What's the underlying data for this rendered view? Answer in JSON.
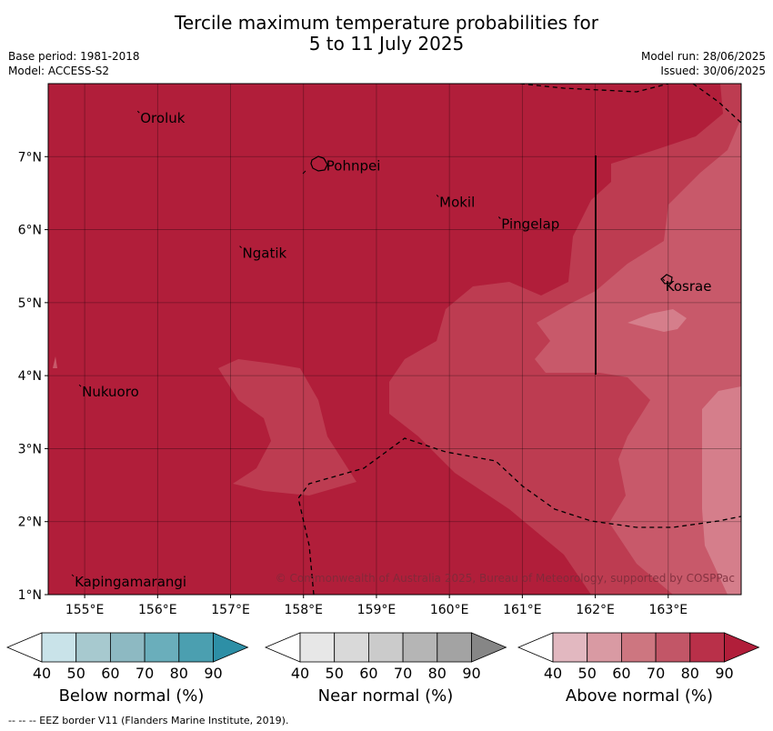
{
  "header": {
    "title_line1": "Tercile maximum temperature probabilities for",
    "title_line2": "5 to 11 July 2025",
    "base_period": "Base period: 1981-2018",
    "model": "Model: ACCESS-S2",
    "model_run": "Model run: 28/06/2025",
    "issued": "Issued: 30/06/2025"
  },
  "map": {
    "lon_range": [
      154.5,
      164.0
    ],
    "lat_range": [
      1.0,
      8.0
    ],
    "lon_ticks": [
      "155°E",
      "156°E",
      "157°E",
      "158°E",
      "159°E",
      "160°E",
      "161°E",
      "162°E",
      "163°E"
    ],
    "lat_ticks": [
      "1°N",
      "2°N",
      "3°N",
      "4°N",
      "5°N",
      "6°N",
      "7°N"
    ],
    "places": [
      {
        "name": "Oroluk",
        "lon": 155.75,
        "lat": 7.6
      },
      {
        "name": "Pohnpei",
        "lon": 158.3,
        "lat": 6.95
      },
      {
        "name": "Mokil",
        "lon": 159.85,
        "lat": 6.45
      },
      {
        "name": "Pingelap",
        "lon": 160.7,
        "lat": 6.15
      },
      {
        "name": "Ngatik",
        "lon": 157.15,
        "lat": 5.75
      },
      {
        "name": "Kosrae",
        "lon": 162.95,
        "lat": 5.3
      },
      {
        "name": "Nukuoro",
        "lon": 154.95,
        "lat": 3.85
      },
      {
        "name": "Kapingamarangi",
        "lon": 154.85,
        "lat": 1.25
      }
    ],
    "copyright": "© Commonwealth of Australia 2025, Bureau of Meteorology, supported by COSPPac",
    "colors": {
      "above_80": "#b11e3a",
      "above_70": "#bd3c51",
      "above_60": "#c8596a",
      "above_50": "#d57e8b"
    }
  },
  "legends": [
    {
      "label": "Below normal (%)",
      "ticks": [
        "40",
        "50",
        "60",
        "70",
        "80",
        "90"
      ],
      "colors": [
        "#ffffff",
        "#c9e3e9",
        "#a7c9cf",
        "#8db9c2",
        "#6aaebb",
        "#4b9fb0",
        "#2d8fa6"
      ]
    },
    {
      "label": "Near normal (%)",
      "ticks": [
        "40",
        "50",
        "60",
        "70",
        "80",
        "90"
      ],
      "colors": [
        "#ffffff",
        "#e7e7e7",
        "#d9d9d9",
        "#cbcbcb",
        "#b5b5b5",
        "#a3a3a3",
        "#868686"
      ]
    },
    {
      "label": "Above normal (%)",
      "ticks": [
        "40",
        "50",
        "60",
        "70",
        "80",
        "90"
      ],
      "colors": [
        "#ffffff",
        "#e2b8c0",
        "#d99aa3",
        "#cd7680",
        "#c25667",
        "#b93049",
        "#b11e3a"
      ]
    }
  ],
  "footer": "--  --  -- EEZ border V11 (Flanders Marine Institute, 2019)."
}
